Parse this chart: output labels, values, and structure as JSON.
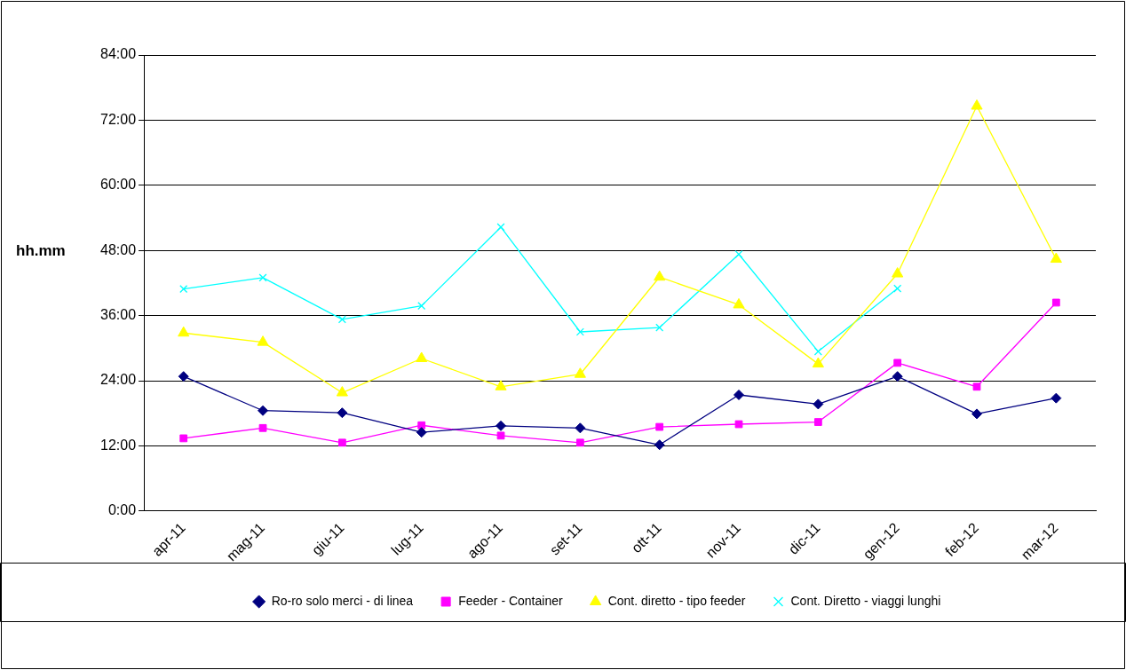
{
  "chart_data": {
    "type": "line",
    "ylabel": "hh.mm",
    "categories": [
      "apr-11",
      "mag-11",
      "giu-11",
      "lug-11",
      "ago-11",
      "set-11",
      "ott-11",
      "nov-11",
      "dic-11",
      "gen-12",
      "feb-12",
      "mar-12"
    ],
    "series": [
      {
        "name": "Ro-ro solo merci - di linea",
        "color": "#000080",
        "marker": "diamond",
        "values": [
          24.8,
          18.5,
          18.1,
          14.5,
          15.7,
          15.3,
          12.2,
          21.4,
          19.7,
          24.8,
          17.9,
          20.8
        ]
      },
      {
        "name": "Feeder - Container",
        "color": "#ff00ff",
        "marker": "square",
        "values": [
          13.4,
          15.3,
          12.6,
          15.8,
          13.9,
          12.6,
          15.5,
          16.0,
          16.4,
          27.3,
          22.9,
          38.4
        ]
      },
      {
        "name": "Cont. diretto - tipo feeder",
        "color": "#ffff00",
        "marker": "triangle",
        "values": [
          32.8,
          31.1,
          21.8,
          28.1,
          22.9,
          25.2,
          43.1,
          38.0,
          27.1,
          43.7,
          74.6,
          46.4
        ]
      },
      {
        "name": "Cont. Diretto - viaggi lunghi",
        "color": "#00ffff",
        "marker": "cross",
        "values": [
          40.9,
          43.0,
          35.3,
          37.8,
          52.3,
          33.0,
          33.8,
          47.3,
          29.4,
          41.0,
          null,
          null
        ]
      }
    ],
    "ylim": [
      0,
      84
    ],
    "yticks": [
      {
        "value": 0,
        "label": "0:00"
      },
      {
        "value": 12,
        "label": "12:00"
      },
      {
        "value": 24,
        "label": "24:00"
      },
      {
        "value": 36,
        "label": "36:00"
      },
      {
        "value": 48,
        "label": "48:00"
      },
      {
        "value": 60,
        "label": "60:00"
      },
      {
        "value": 72,
        "label": "72:00"
      },
      {
        "value": 84,
        "label": "84:00"
      }
    ],
    "grid": "y",
    "legend": "bottom",
    "line_style": "solid"
  }
}
